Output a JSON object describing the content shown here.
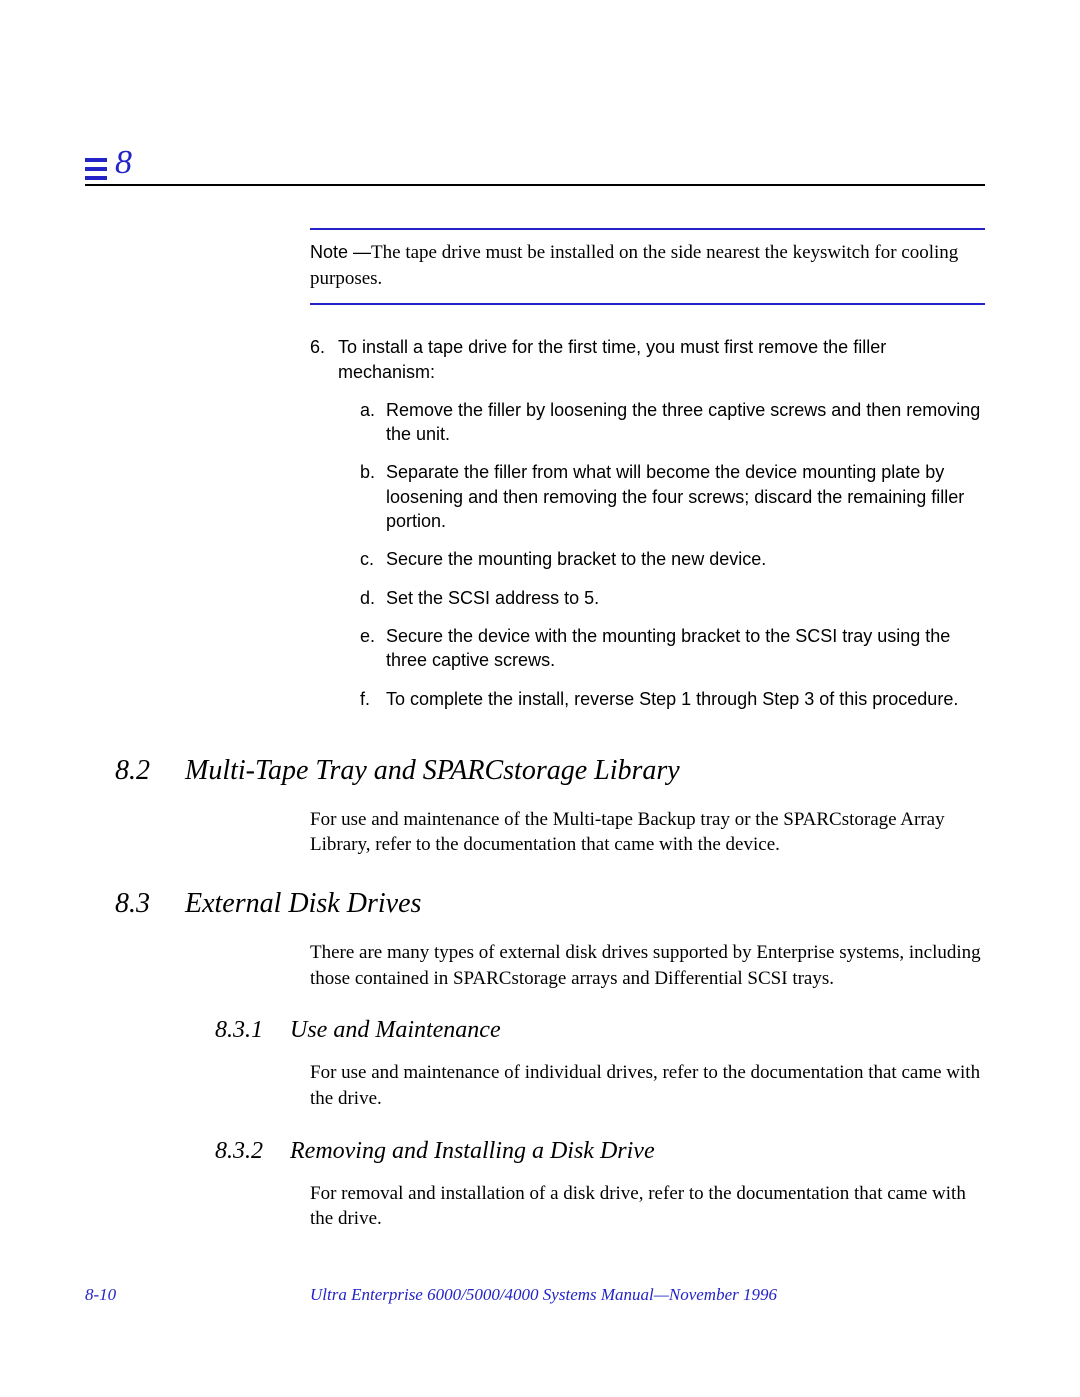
{
  "colors": {
    "accent": "#2323c8",
    "rule": "#000000",
    "text": "#000000",
    "background": "#ffffff"
  },
  "typography": {
    "serif_family": "Palatino",
    "sans_family": "Helvetica",
    "body_pt": 19,
    "h2_pt": 28,
    "h3_pt": 24,
    "chapter_num_pt": 34,
    "footer_pt": 17
  },
  "chapter": {
    "number": "8"
  },
  "note": {
    "label": "Note —",
    "text": "The tape drive must be installed on the side nearest the keyswitch for cooling purposes."
  },
  "step6": {
    "number": "6.",
    "text": "To install a tape drive for the first time, you must first remove the filler mechanism:",
    "substeps": {
      "a": {
        "letter": "a.",
        "text": "Remove the filler by loosening the three captive screws and then removing the unit."
      },
      "b": {
        "letter": "b.",
        "text": "Separate the filler from what will become the device mounting plate by loosening and then removing the four screws; discard the remaining filler portion."
      },
      "c": {
        "letter": "c.",
        "text": "Secure the mounting bracket to the new device."
      },
      "d": {
        "letter": "d.",
        "text": "Set the SCSI address to 5."
      },
      "e": {
        "letter": "e.",
        "text": "Secure the device with the mounting bracket to the SCSI tray using the three captive screws."
      },
      "f": {
        "letter": "f.",
        "text": "To complete the install, reverse Step 1 through Step 3 of this procedure."
      }
    }
  },
  "sec82": {
    "num": "8.2",
    "title": "Multi-Tape Tray and SPARCstorage Library",
    "body": "For use and maintenance of the Multi-tape Backup tray or the SPARCstorage Array Library, refer to the documentation that came with the device."
  },
  "sec83": {
    "num": "8.3",
    "title": "External Disk Drives",
    "body": "There are many types of external disk drives supported by Enterprise systems, including those contained in SPARCstorage arrays and Differential SCSI trays."
  },
  "sec831": {
    "num": "8.3.1",
    "title": "Use and Maintenance",
    "body": "For use and maintenance of individual drives, refer to the documentation that came with the drive."
  },
  "sec832": {
    "num": "8.3.2",
    "title": "Removing and Installing a Disk Drive",
    "body": "For removal and installation of a disk drive, refer to the documentation that came with the drive."
  },
  "footer": {
    "page": "8-10",
    "title": "Ultra Enterprise 6000/5000/4000 Systems Manual—November 1996"
  }
}
